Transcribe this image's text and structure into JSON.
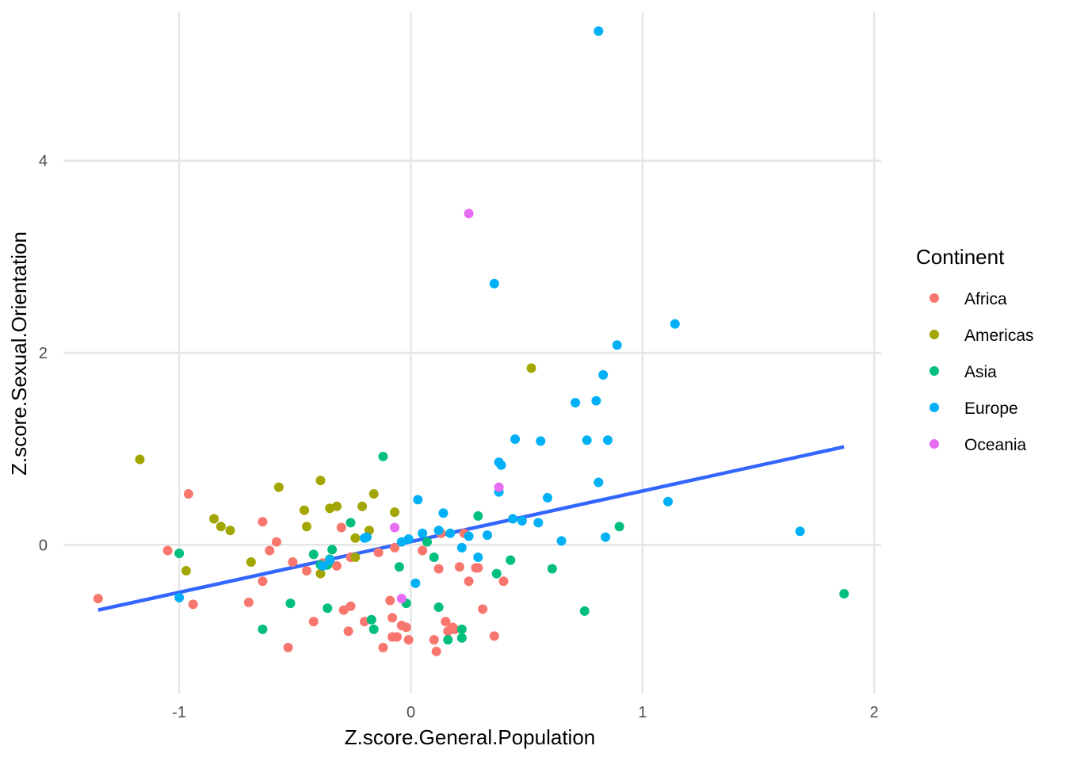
{
  "chart_data": {
    "type": "scatter",
    "xlabel": "Z.score.General.Population",
    "ylabel": "Z.score.Sexual.Orientation",
    "xlim": [
      -1.5,
      2.03
    ],
    "ylim": [
      -1.55,
      5.55
    ],
    "x_ticks": [
      -1,
      0,
      1,
      2
    ],
    "y_ticks": [
      0,
      2,
      4
    ],
    "x_tick_labels": [
      "-1",
      "0",
      "1",
      "2"
    ],
    "y_tick_labels": [
      "0",
      "2",
      "4"
    ],
    "grid": true,
    "legend": {
      "title": "Continent",
      "placement": "right",
      "entries": [
        "Africa",
        "Americas",
        "Asia",
        "Europe",
        "Oceania"
      ]
    },
    "colors": {
      "Africa": "#F8766D",
      "Americas": "#A3A500",
      "Asia": "#00BF7D",
      "Europe": "#00B0F6",
      "Oceania": "#E76BF3",
      "trend": "#3366FF"
    },
    "trend_line": {
      "x": [
        -1.35,
        1.87
      ],
      "y": [
        -0.68,
        1.02
      ]
    },
    "series": [
      {
        "name": "Africa",
        "points": [
          [
            -1.35,
            -0.56
          ],
          [
            -1.05,
            -0.06
          ],
          [
            -0.96,
            0.53
          ],
          [
            -0.94,
            -0.62
          ],
          [
            -0.7,
            -0.6
          ],
          [
            -0.64,
            0.24
          ],
          [
            -0.64,
            -0.38
          ],
          [
            -0.61,
            -0.06
          ],
          [
            -0.58,
            0.03
          ],
          [
            -0.53,
            -1.07
          ],
          [
            -0.51,
            -0.18
          ],
          [
            -0.45,
            -0.27
          ],
          [
            -0.42,
            -0.8
          ],
          [
            -0.38,
            -0.19
          ],
          [
            -0.32,
            -0.22
          ],
          [
            -0.3,
            0.18
          ],
          [
            -0.29,
            -0.68
          ],
          [
            -0.27,
            -0.9
          ],
          [
            -0.26,
            -0.13
          ],
          [
            -0.26,
            -0.64
          ],
          [
            -0.2,
            -0.8
          ],
          [
            -0.14,
            -0.08
          ],
          [
            -0.12,
            -1.07
          ],
          [
            -0.09,
            -0.58
          ],
          [
            -0.08,
            -0.76
          ],
          [
            -0.08,
            -0.96
          ],
          [
            -0.07,
            -0.03
          ],
          [
            -0.06,
            -0.96
          ],
          [
            -0.04,
            -0.84
          ],
          [
            -0.02,
            -0.86
          ],
          [
            -0.01,
            -0.99
          ],
          [
            0.05,
            -0.06
          ],
          [
            0.1,
            -0.99
          ],
          [
            0.11,
            -1.11
          ],
          [
            0.12,
            -0.25
          ],
          [
            0.13,
            0.12
          ],
          [
            0.15,
            -0.8
          ],
          [
            0.16,
            -0.9
          ],
          [
            0.18,
            -0.86
          ],
          [
            0.19,
            -0.88
          ],
          [
            0.21,
            -0.23
          ],
          [
            0.23,
            0.12
          ],
          [
            0.25,
            -0.38
          ],
          [
            0.28,
            -0.24
          ],
          [
            0.29,
            -0.24
          ],
          [
            0.31,
            -0.67
          ],
          [
            0.36,
            -0.95
          ],
          [
            0.4,
            -0.38
          ]
        ]
      },
      {
        "name": "Americas",
        "points": [
          [
            -1.17,
            0.89
          ],
          [
            -0.97,
            -0.27
          ],
          [
            -0.85,
            0.27
          ],
          [
            -0.82,
            0.19
          ],
          [
            -0.78,
            0.15
          ],
          [
            -0.69,
            -0.18
          ],
          [
            -0.57,
            0.6
          ],
          [
            -0.46,
            0.36
          ],
          [
            -0.45,
            0.19
          ],
          [
            -0.39,
            0.67
          ],
          [
            -0.39,
            -0.3
          ],
          [
            -0.35,
            0.38
          ],
          [
            -0.32,
            0.4
          ],
          [
            -0.24,
            -0.13
          ],
          [
            -0.24,
            0.07
          ],
          [
            -0.21,
            0.4
          ],
          [
            -0.18,
            0.15
          ],
          [
            -0.16,
            0.53
          ],
          [
            -0.07,
            0.34
          ],
          [
            0.52,
            1.84
          ]
        ]
      },
      {
        "name": "Asia",
        "points": [
          [
            -1.0,
            -0.09
          ],
          [
            -0.64,
            -0.88
          ],
          [
            -0.52,
            -0.61
          ],
          [
            -0.42,
            -0.1
          ],
          [
            -0.39,
            -0.21
          ],
          [
            -0.36,
            -0.66
          ],
          [
            -0.36,
            -0.21
          ],
          [
            -0.35,
            -0.15
          ],
          [
            -0.34,
            -0.05
          ],
          [
            -0.26,
            0.23
          ],
          [
            -0.17,
            -0.78
          ],
          [
            -0.16,
            -0.88
          ],
          [
            -0.12,
            0.92
          ],
          [
            -0.05,
            -0.23
          ],
          [
            -0.02,
            -0.61
          ],
          [
            0.07,
            0.03
          ],
          [
            0.1,
            -0.13
          ],
          [
            0.12,
            -0.65
          ],
          [
            0.16,
            -0.99
          ],
          [
            0.22,
            -0.97
          ],
          [
            0.22,
            -0.88
          ],
          [
            0.29,
            0.3
          ],
          [
            0.37,
            -0.3
          ],
          [
            0.43,
            -0.16
          ],
          [
            0.61,
            -0.25
          ],
          [
            0.75,
            -0.69
          ],
          [
            0.9,
            0.19
          ],
          [
            1.87,
            -0.51
          ]
        ]
      },
      {
        "name": "Europe",
        "points": [
          [
            -1.0,
            -0.55
          ],
          [
            -0.38,
            -0.22
          ],
          [
            -0.35,
            -0.16
          ],
          [
            -0.2,
            0.07
          ],
          [
            -0.19,
            0.08
          ],
          [
            -0.04,
            0.03
          ],
          [
            -0.01,
            0.06
          ],
          [
            0.02,
            -0.4
          ],
          [
            0.03,
            0.47
          ],
          [
            0.05,
            0.12
          ],
          [
            0.12,
            0.15
          ],
          [
            0.14,
            0.33
          ],
          [
            0.17,
            0.12
          ],
          [
            0.22,
            -0.03
          ],
          [
            0.25,
            0.09
          ],
          [
            0.29,
            -0.13
          ],
          [
            0.33,
            0.1
          ],
          [
            0.36,
            2.72
          ],
          [
            0.38,
            0.55
          ],
          [
            0.38,
            0.86
          ],
          [
            0.39,
            0.83
          ],
          [
            0.44,
            0.27
          ],
          [
            0.45,
            1.1
          ],
          [
            0.48,
            0.25
          ],
          [
            0.55,
            0.23
          ],
          [
            0.56,
            1.08
          ],
          [
            0.59,
            0.49
          ],
          [
            0.65,
            0.04
          ],
          [
            0.71,
            1.48
          ],
          [
            0.76,
            1.09
          ],
          [
            0.8,
            1.5
          ],
          [
            0.81,
            0.65
          ],
          [
            0.81,
            5.35
          ],
          [
            0.83,
            1.77
          ],
          [
            0.84,
            0.08
          ],
          [
            0.85,
            1.09
          ],
          [
            0.89,
            2.08
          ],
          [
            1.11,
            0.45
          ],
          [
            1.14,
            2.3
          ],
          [
            1.68,
            0.14
          ]
        ]
      },
      {
        "name": "Oceania",
        "points": [
          [
            -0.07,
            0.18
          ],
          [
            -0.04,
            -0.56
          ],
          [
            0.25,
            3.45
          ],
          [
            0.38,
            0.6
          ]
        ]
      }
    ]
  }
}
